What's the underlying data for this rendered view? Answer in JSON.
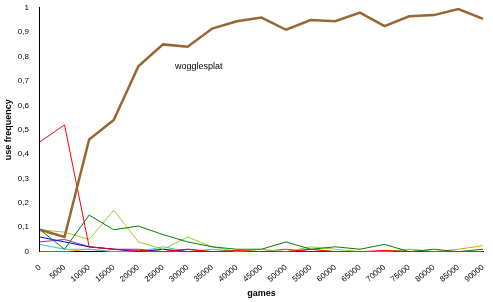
{
  "chart_data": {
    "type": "line",
    "x_label": "games",
    "y_label": "use frequency",
    "x": [
      0,
      5000,
      10000,
      15000,
      20000,
      25000,
      30000,
      35000,
      40000,
      45000,
      50000,
      55000,
      60000,
      65000,
      70000,
      75000,
      80000,
      85000,
      90000
    ],
    "xlim": [
      0,
      90000
    ],
    "xticks": [
      0,
      5000,
      10000,
      15000,
      20000,
      25000,
      30000,
      35000,
      40000,
      45000,
      50000,
      55000,
      60000,
      65000,
      70000,
      75000,
      80000,
      85000,
      90000
    ],
    "ylim": [
      0,
      1
    ],
    "yticks": [
      0,
      {
        "value": 0.1,
        "label": "0,1"
      },
      {
        "value": 0.2,
        "label": "0,2"
      },
      {
        "value": 0.3,
        "label": "0,3"
      },
      {
        "value": 0.4,
        "label": "0,4"
      },
      {
        "value": 0.5,
        "label": "0,5"
      },
      {
        "value": 0.6,
        "label": "0,6"
      },
      {
        "value": 0.7,
        "label": "0,7"
      },
      {
        "value": 0.8,
        "label": "0,8"
      },
      {
        "value": 0.9,
        "label": "0,9"
      },
      1
    ],
    "grid": false,
    "series": [
      {
        "name": "wogglesplat",
        "color": "#996633",
        "values": [
          0.09,
          0.06,
          0.46,
          0.54,
          0.76,
          0.85,
          0.84,
          0.915,
          0.945,
          0.96,
          0.91,
          0.95,
          0.945,
          0.98,
          0.925,
          0.965,
          0.97,
          0.995,
          0.955
        ]
      },
      {
        "color": "#ff0000",
        "values": [
          0.45,
          0.52,
          0.02,
          0.01,
          0.005,
          0.0,
          0.01,
          0.0,
          0.005,
          0.0,
          0.0,
          0.01,
          0.0,
          0.0,
          0.005,
          0.0,
          0.0,
          0.0,
          0.0
        ]
      },
      {
        "color": "#008000",
        "values": [
          0.09,
          0.01,
          0.15,
          0.09,
          0.105,
          0.07,
          0.04,
          0.02,
          0.01,
          0.01,
          0.04,
          0.01,
          0.02,
          0.01,
          0.03,
          0.0,
          0.01,
          0.0,
          0.01
        ]
      },
      {
        "color": "#99cc33",
        "values": [
          0.09,
          0.08,
          0.05,
          0.17,
          0.04,
          0.01,
          0.06,
          0.02,
          0.0,
          0.01,
          0.0,
          0.02,
          0.01,
          0.0,
          0.0,
          0.01,
          0.0,
          0.0,
          0.0
        ]
      },
      {
        "color": "#0000ff",
        "values": [
          0.06,
          0.04,
          0.02,
          0.01,
          0.0,
          0.01,
          0.0,
          0.0,
          0.0,
          0.0,
          0.0,
          0.0,
          0.0,
          0.0,
          0.0,
          0.0,
          0.0,
          0.0,
          0.0
        ]
      },
      {
        "color": "#993399",
        "values": [
          0.04,
          0.05,
          0.02,
          0.01,
          0.01,
          0.0,
          0.01,
          0.0,
          0.0,
          0.0,
          0.01,
          0.0,
          0.0,
          0.0,
          0.0,
          0.0,
          0.0,
          0.0,
          0.0
        ]
      },
      {
        "color": "#33cccc",
        "values": [
          0.03,
          0.01,
          0.01,
          0.0,
          0.0,
          0.02,
          0.0,
          0.01,
          0.0,
          0.0,
          0.0,
          0.0,
          0.0,
          0.0,
          0.0,
          0.01,
          0.0,
          0.0,
          0.0
        ]
      },
      {
        "color": "#ff9900",
        "values": [
          0.0,
          0.0,
          0.01,
          0.0,
          0.0,
          0.0,
          0.0,
          0.0,
          0.0,
          0.0,
          0.0,
          0.01,
          0.0,
          0.0,
          0.0,
          0.0,
          0.0,
          0.01,
          0.025
        ]
      }
    ]
  }
}
